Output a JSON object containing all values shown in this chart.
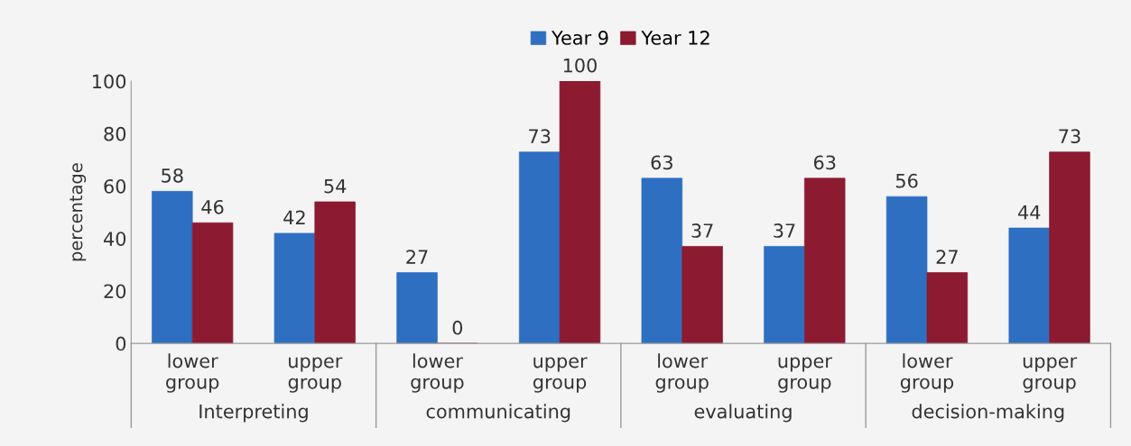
{
  "chart_data": {
    "type": "bar",
    "ylabel": "percentage",
    "categories": [
      "lower\ngroup",
      "upper\ngroup",
      "lower\ngroup",
      "upper\ngroup",
      "lower\ngroup",
      "upper\ngroup",
      "lower\ngroup",
      "upper\ngroup"
    ],
    "series": [
      {
        "name": "Year 9",
        "color": "#2e6fc1",
        "values": [
          58,
          42,
          27,
          73,
          63,
          37,
          56,
          44
        ]
      },
      {
        "name": "Year 12",
        "color": "#8c1a30",
        "values": [
          46,
          54,
          0,
          100,
          37,
          63,
          27,
          73
        ]
      }
    ],
    "annotations": [
      "Interpreting",
      "communicating",
      "evaluating",
      "decision-making"
    ],
    "ylim": [
      0,
      100
    ],
    "yticks": [
      0,
      20,
      40,
      60,
      80,
      100
    ],
    "data_labels": true,
    "grid": false,
    "legend": "top"
  }
}
